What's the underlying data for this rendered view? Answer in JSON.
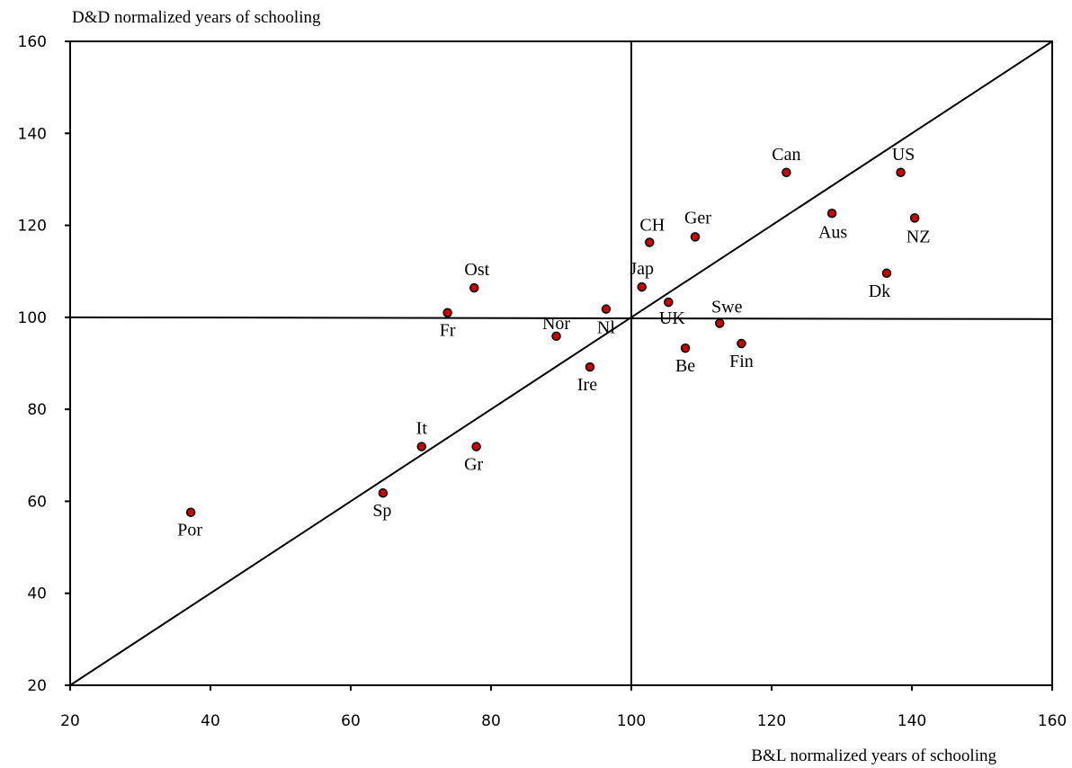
{
  "chart_data": {
    "type": "scatter",
    "title": "",
    "xlabel": "B&L normalized years of schooling",
    "ylabel": "D&D normalized years of schooling",
    "xlim": [
      20,
      160
    ],
    "ylim": [
      20,
      160
    ],
    "xticks": [
      20,
      40,
      60,
      80,
      100,
      120,
      140,
      160
    ],
    "yticks": [
      20,
      40,
      60,
      80,
      100,
      120,
      140,
      160
    ],
    "grid": false,
    "reference_lines": {
      "diagonal": [
        [
          20,
          20
        ],
        [
          160,
          160
        ]
      ],
      "horizontal_y": 100,
      "vertical_x": 100
    },
    "point_color": "#cc0000",
    "points": [
      {
        "label": "Por",
        "x": 37.2,
        "y": 57.6,
        "lx": -1,
        "ly": 26
      },
      {
        "label": "Sp",
        "x": 64.6,
        "y": 61.8,
        "lx": -1,
        "ly": 26
      },
      {
        "label": "It",
        "x": 70.1,
        "y": 71.9,
        "lx": 0,
        "ly": -14
      },
      {
        "label": "Gr",
        "x": 77.9,
        "y": 71.9,
        "lx": -3,
        "ly": 26
      },
      {
        "label": "Fr",
        "x": 73.8,
        "y": 101.0,
        "lx": 0,
        "ly": 26
      },
      {
        "label": "Ost",
        "x": 77.6,
        "y": 106.4,
        "lx": 3,
        "ly": -14
      },
      {
        "label": "Nor",
        "x": 89.3,
        "y": 95.9,
        "lx": 0,
        "ly": -8
      },
      {
        "label": "Nl",
        "x": 96.4,
        "y": 101.8,
        "lx": 0,
        "ly": 27
      },
      {
        "label": "Ire",
        "x": 94.1,
        "y": 89.2,
        "lx": -3,
        "ly": 26
      },
      {
        "label": "Jap",
        "x": 101.5,
        "y": 106.6,
        "lx": 0,
        "ly": -14
      },
      {
        "label": "CH",
        "x": 102.6,
        "y": 116.3,
        "lx": 3,
        "ly": -13
      },
      {
        "label": "UK",
        "x": 105.3,
        "y": 103.3,
        "lx": 4,
        "ly": 24
      },
      {
        "label": "Ger",
        "x": 109.1,
        "y": 117.5,
        "lx": 3,
        "ly": -15
      },
      {
        "label": "Be",
        "x": 107.7,
        "y": 93.3,
        "lx": 0,
        "ly": 26
      },
      {
        "label": "Swe",
        "x": 112.6,
        "y": 98.7,
        "lx": 8,
        "ly": -12
      },
      {
        "label": "Fin",
        "x": 115.7,
        "y": 94.3,
        "lx": 0,
        "ly": 26
      },
      {
        "label": "Can",
        "x": 122.1,
        "y": 131.5,
        "lx": 0,
        "ly": -14
      },
      {
        "label": "Aus",
        "x": 128.6,
        "y": 122.6,
        "lx": 1,
        "ly": 27
      },
      {
        "label": "Dk",
        "x": 136.4,
        "y": 109.6,
        "lx": -8,
        "ly": 26
      },
      {
        "label": "US",
        "x": 138.4,
        "y": 131.5,
        "lx": 3,
        "ly": -14
      },
      {
        "label": "NZ",
        "x": 140.4,
        "y": 121.6,
        "lx": 4,
        "ly": 27
      }
    ]
  }
}
